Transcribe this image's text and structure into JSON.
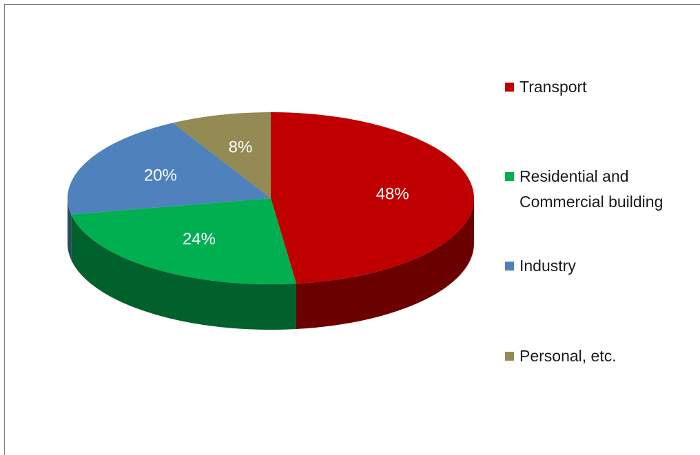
{
  "chart_data": {
    "type": "pie",
    "categories": [
      "Transport",
      "Residential and Commercial building",
      "Industry",
      "Personal, etc."
    ],
    "values": [
      48,
      24,
      20,
      8
    ],
    "value_labels": [
      "48%",
      "24%",
      "20%",
      "8%"
    ],
    "colors": [
      "#c00000",
      "#00b050",
      "#4f81bd",
      "#948a54"
    ]
  }
}
